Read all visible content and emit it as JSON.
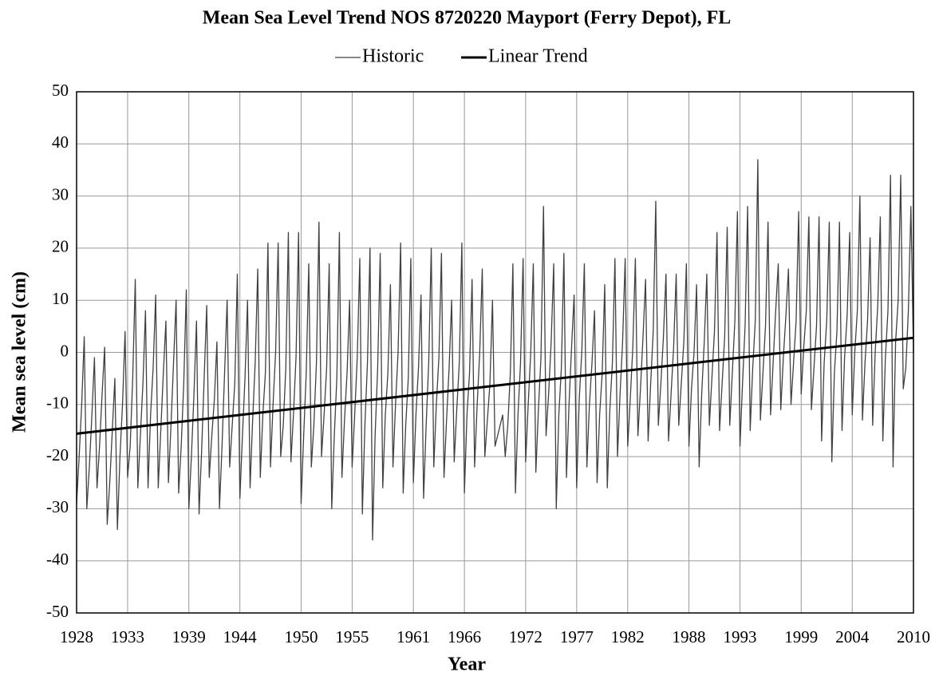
{
  "chart_data": {
    "type": "line",
    "title": "Mean Sea Level Trend NOS 8720220 Mayport (Ferry Depot), FL",
    "x_label": "Year",
    "y_label": "Mean sea level (cm)",
    "xlim": [
      1928,
      2010
    ],
    "ylim": [
      -50,
      50
    ],
    "xticks": [
      1928,
      1933,
      1939,
      1944,
      1950,
      1955,
      1961,
      1966,
      1972,
      1977,
      1982,
      1988,
      1993,
      1999,
      2004,
      2010
    ],
    "yticks": [
      -50,
      -40,
      -30,
      -20,
      -10,
      0,
      10,
      20,
      30,
      40,
      50
    ],
    "grid": true,
    "legend": "top",
    "series": [
      {
        "name": "Historic",
        "color": "#404040",
        "width": 1.3,
        "x": [
          1928,
          1928.25,
          1928.5,
          1928.75,
          1929,
          1929.25,
          1929.5,
          1929.75,
          1930,
          1930.25,
          1930.5,
          1930.75,
          1931,
          1931.25,
          1931.5,
          1931.75,
          1932,
          1932.25,
          1932.5,
          1932.75,
          1933,
          1933.25,
          1933.5,
          1933.75,
          1934,
          1934.25,
          1934.5,
          1934.75,
          1935,
          1935.25,
          1935.5,
          1935.75,
          1936,
          1936.25,
          1936.5,
          1936.75,
          1937,
          1937.25,
          1937.5,
          1937.75,
          1938,
          1938.25,
          1938.5,
          1938.75,
          1939,
          1939.25,
          1939.5,
          1939.75,
          1940,
          1940.25,
          1940.5,
          1940.75,
          1941,
          1941.25,
          1941.5,
          1941.75,
          1942,
          1942.25,
          1942.5,
          1942.75,
          1943,
          1943.25,
          1943.5,
          1943.75,
          1944,
          1944.25,
          1944.5,
          1944.75,
          1945,
          1945.25,
          1945.5,
          1945.75,
          1946,
          1946.25,
          1946.5,
          1946.75,
          1947,
          1947.25,
          1947.5,
          1947.75,
          1948,
          1948.25,
          1948.5,
          1948.75,
          1949,
          1949.25,
          1949.5,
          1949.75,
          1950,
          1950.25,
          1950.5,
          1950.75,
          1951,
          1951.25,
          1951.5,
          1951.75,
          1952,
          1952.25,
          1952.5,
          1952.75,
          1953,
          1953.25,
          1953.5,
          1953.75,
          1954,
          1954.25,
          1954.5,
          1954.75,
          1955,
          1955.25,
          1955.5,
          1955.75,
          1956,
          1956.25,
          1956.5,
          1956.75,
          1957,
          1957.25,
          1957.5,
          1957.75,
          1958,
          1958.25,
          1958.5,
          1958.75,
          1959,
          1959.25,
          1959.5,
          1959.75,
          1960,
          1960.25,
          1960.5,
          1960.75,
          1961,
          1961.25,
          1961.5,
          1961.75,
          1962,
          1962.25,
          1962.5,
          1962.75,
          1963,
          1963.25,
          1963.5,
          1963.75,
          1964,
          1964.25,
          1964.5,
          1964.75,
          1965,
          1965.25,
          1965.5,
          1965.75,
          1966,
          1966.25,
          1966.5,
          1966.75,
          1967,
          1967.25,
          1967.5,
          1967.75,
          1968,
          1968.25,
          1968.5,
          1968.75,
          1969,
          1969.25,
          1969.5,
          1969.75,
          1970,
          1970.25,
          1970.5,
          1970.75,
          1971,
          1971.25,
          1971.5,
          1971.75,
          1972,
          1972.25,
          1972.5,
          1972.75,
          1973,
          1973.25,
          1973.5,
          1973.75,
          1974,
          1974.25,
          1974.5,
          1974.75,
          1975,
          1975.25,
          1975.5,
          1975.75,
          1976,
          1976.25,
          1976.5,
          1976.75,
          1977,
          1977.25,
          1977.5,
          1977.75,
          1978,
          1978.25,
          1978.5,
          1978.75,
          1979,
          1979.25,
          1979.5,
          1979.75,
          1980,
          1980.25,
          1980.5,
          1980.75,
          1981,
          1981.25,
          1981.5,
          1981.75,
          1982,
          1982.25,
          1982.5,
          1982.75,
          1983,
          1983.25,
          1983.5,
          1983.75,
          1984,
          1984.25,
          1984.5,
          1984.75,
          1985,
          1985.25,
          1985.5,
          1985.75,
          1986,
          1986.25,
          1986.5,
          1986.75,
          1987,
          1987.25,
          1987.5,
          1987.75,
          1988,
          1988.25,
          1988.5,
          1988.75,
          1989,
          1989.25,
          1989.5,
          1989.75,
          1990,
          1990.25,
          1990.5,
          1990.75,
          1991,
          1991.25,
          1991.5,
          1991.75,
          1992,
          1992.25,
          1992.5,
          1992.75,
          1993,
          1993.25,
          1993.5,
          1993.75,
          1994,
          1994.25,
          1994.5,
          1994.75,
          1995,
          1995.25,
          1995.5,
          1995.75,
          1996,
          1996.25,
          1996.5,
          1996.75,
          1997,
          1997.25,
          1997.5,
          1997.75,
          1998,
          1998.25,
          1998.5,
          1998.75,
          1999,
          1999.25,
          1999.5,
          1999.75,
          2000,
          2000.25,
          2000.5,
          2000.75,
          2001,
          2001.25,
          2001.5,
          2001.75,
          2002,
          2002.25,
          2002.5,
          2002.75,
          2003,
          2003.25,
          2003.5,
          2003.75,
          2004,
          2004.25,
          2004.5,
          2004.75,
          2005,
          2005.25,
          2005.5,
          2005.75,
          2006,
          2006.25,
          2006.5,
          2006.75,
          2007,
          2007.25,
          2007.5,
          2007.75,
          2008,
          2008.25,
          2008.5,
          2008.75,
          2009,
          2009.25,
          2009.5,
          2009.75,
          2010
        ],
        "values": [
          -29,
          -20,
          -10,
          3,
          -30,
          -22,
          -12,
          -1,
          -26,
          -18,
          -8,
          1,
          -33,
          -25,
          -15,
          -5,
          -34,
          -20,
          -10,
          4,
          -24,
          -18,
          -5,
          14,
          -26,
          -16,
          -6,
          8,
          -26,
          -12,
          -3,
          11,
          -26,
          -15,
          -4,
          6,
          -25,
          -14,
          -2,
          10,
          -27,
          -18,
          -6,
          12,
          -30,
          -20,
          -8,
          6,
          -31,
          -19,
          -5,
          9,
          -24,
          -16,
          -9,
          2,
          -30,
          -18,
          -4,
          10,
          -22,
          -14,
          -6,
          15,
          -28,
          -16,
          -5,
          10,
          -26,
          -13,
          -2,
          16,
          -24,
          -12,
          -4,
          21,
          -22,
          -10,
          0,
          21,
          -20,
          -14,
          -3,
          23,
          -21,
          -12,
          -1,
          23,
          -29,
          -16,
          -4,
          17,
          -22,
          -14,
          -2,
          25,
          -20,
          -12,
          -3,
          17,
          -30,
          -16,
          -5,
          23,
          -24,
          -13,
          -4,
          10,
          -22,
          -12,
          -1,
          18,
          -31,
          -14,
          -2,
          20,
          -36,
          -16,
          -3,
          19,
          -26,
          -12,
          -4,
          13,
          -22,
          -10,
          0,
          21,
          -27,
          -14,
          -5,
          18,
          -25,
          -12,
          -3,
          11,
          -28,
          -14,
          -2,
          20,
          -22,
          -10,
          -1,
          19,
          -24,
          -13,
          -3,
          10,
          -21,
          -11,
          -2,
          21,
          -27,
          -12,
          -4,
          14,
          -22,
          -10,
          0,
          16,
          -20,
          -13,
          -6,
          10,
          -18,
          -16,
          -14,
          -12,
          -20,
          -14,
          -4,
          17,
          -27,
          -12,
          -2,
          18,
          -21,
          -10,
          0,
          17,
          -23,
          -11,
          -1,
          28,
          -16,
          -8,
          2,
          17,
          -30,
          -12,
          -3,
          19,
          -24,
          -10,
          1,
          11,
          -26,
          -9,
          0,
          17,
          -22,
          -10,
          -2,
          8,
          -25,
          -12,
          -4,
          13,
          -26,
          -11,
          -2,
          18,
          -20,
          -8,
          2,
          18,
          -18,
          -9,
          1,
          18,
          -16,
          -7,
          3,
          14,
          -17,
          -6,
          4,
          29,
          -14,
          -6,
          3,
          15,
          -17,
          -8,
          1,
          15,
          -14,
          -6,
          2,
          17,
          -18,
          -7,
          0,
          13,
          -22,
          -8,
          2,
          15,
          -14,
          -5,
          4,
          23,
          -15,
          -6,
          3,
          24,
          -14,
          -4,
          6,
          27,
          -18,
          -6,
          5,
          28,
          -15,
          -3,
          6,
          37,
          -13,
          -4,
          5,
          25,
          -12,
          -2,
          8,
          17,
          -11,
          -1,
          7,
          16,
          -10,
          -2,
          6,
          27,
          -8,
          1,
          8,
          26,
          -11,
          -3,
          5,
          26,
          -17,
          -2,
          6,
          25,
          -21,
          -4,
          4,
          25,
          -15,
          -1,
          7,
          23,
          -12,
          0,
          8,
          30,
          -13,
          -2,
          6,
          22,
          -14,
          0,
          9,
          26,
          -17,
          -1,
          8,
          34,
          -22,
          2,
          10,
          34,
          -7,
          -3,
          8,
          28,
          0
        ]
      },
      {
        "name": "Linear Trend",
        "color": "#000000",
        "width": 3,
        "x": [
          1928,
          2010
        ],
        "values": [
          -15.6,
          2.8
        ]
      }
    ]
  }
}
